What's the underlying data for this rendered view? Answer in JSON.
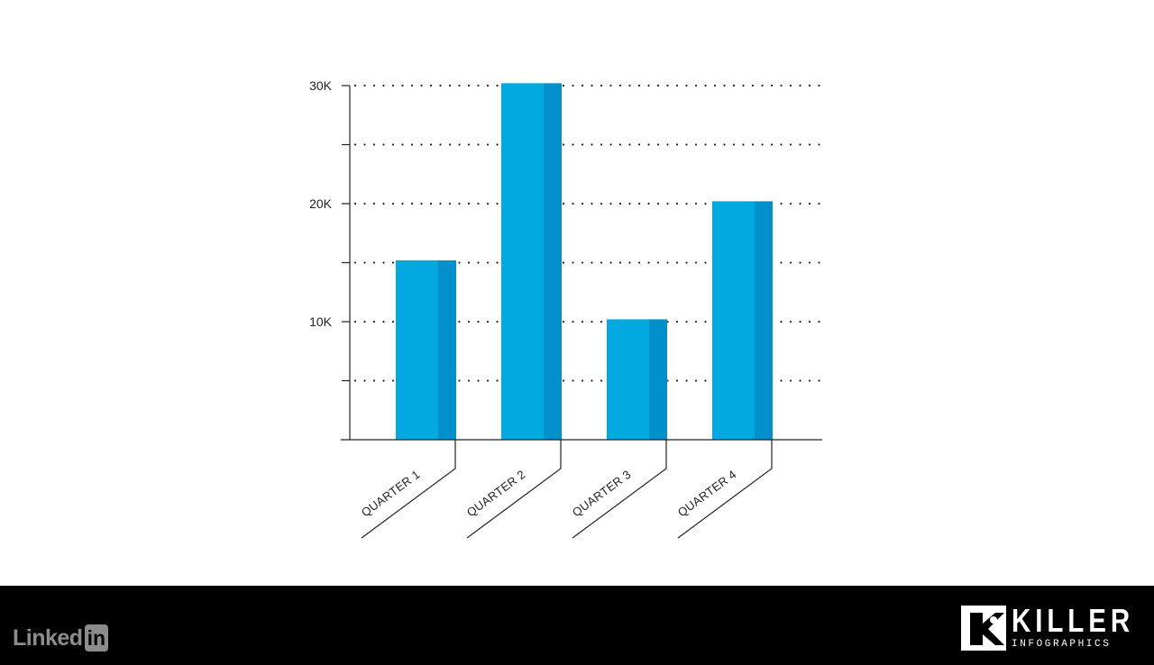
{
  "chart_data": {
    "type": "bar",
    "categories": [
      "QUARTER 1",
      "QUARTER 2",
      "QUARTER 3",
      "QUARTER 4"
    ],
    "values": [
      15200,
      30200,
      10200,
      20200
    ],
    "ylim": [
      0,
      30000
    ],
    "yticks": [
      0,
      5000,
      10000,
      15000,
      20000,
      25000,
      30000
    ],
    "ytick_labels": [
      "",
      "",
      "10K",
      "",
      "20K",
      "",
      "30K"
    ],
    "title": "",
    "xlabel": "",
    "ylabel": "",
    "grid": "dotted horizontal",
    "colors": {
      "bar_front": "#02a8e0",
      "bar_side": "#0190cc",
      "axis": "#222222",
      "grid": "#222222"
    }
  },
  "footer": {
    "background": "#000000",
    "linkedin": {
      "linked": "Linked",
      "in": "in"
    },
    "brand": {
      "name": "KILLER",
      "tagline": "INFOGRAPHICS"
    }
  }
}
